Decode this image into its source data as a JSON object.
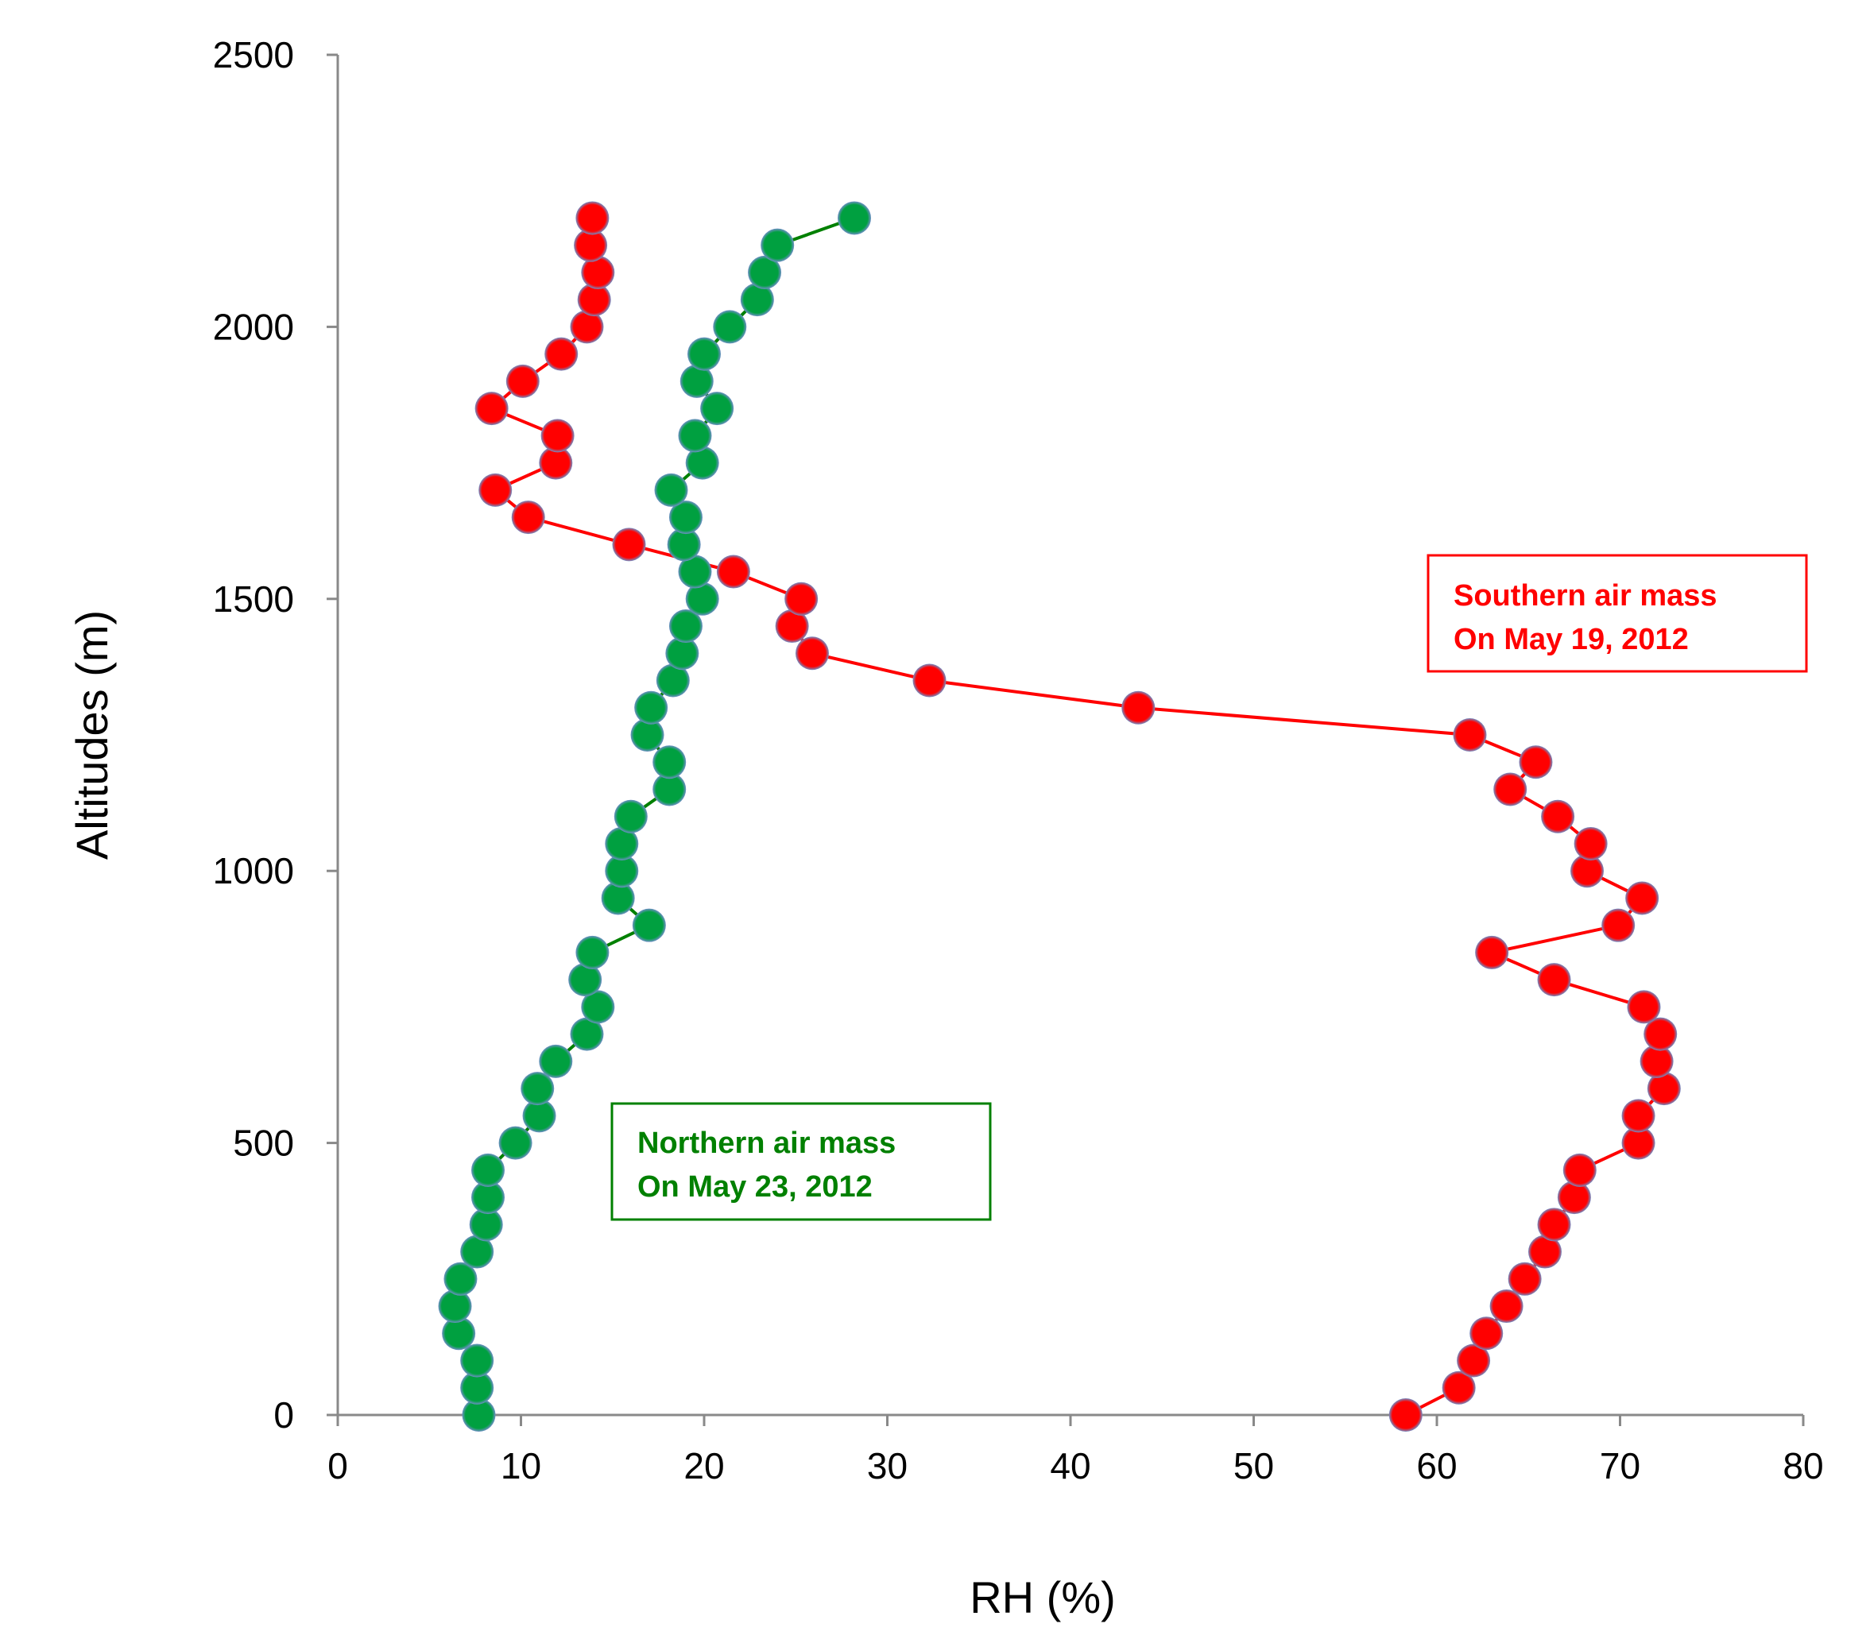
{
  "chart_data": {
    "type": "line",
    "title": "",
    "xlabel": "RH (%)",
    "ylabel": "Altitudes (m)",
    "xlim": [
      0,
      80
    ],
    "ylim": [
      0,
      2500
    ],
    "xticks": [
      "0",
      "10",
      "20",
      "30",
      "40",
      "50",
      "60",
      "70",
      "80"
    ],
    "yticks": [
      "0",
      "500",
      "1000",
      "1500",
      "2000",
      "2500"
    ],
    "grid": false,
    "series": [
      {
        "key": "southern",
        "color": "#ff0000",
        "marker": "circle",
        "label_lines": [
          "Southern air mass",
          "On May 19, 2012"
        ],
        "x": [
          58.3,
          61.2,
          62.0,
          62.7,
          63.8,
          64.8,
          65.9,
          66.4,
          67.5,
          67.8,
          71.0,
          71.0,
          72.4,
          72.0,
          72.2,
          71.3,
          66.4,
          63.0,
          69.9,
          71.2,
          68.2,
          68.4,
          66.6,
          64.0,
          65.4,
          61.8,
          43.7,
          32.3,
          25.9,
          24.8,
          25.3,
          21.6,
          15.9,
          10.4,
          8.6,
          11.9,
          12.0,
          8.4,
          10.1,
          12.2,
          13.6,
          14.0,
          14.2,
          13.8,
          13.9
        ],
        "y": [
          0,
          50,
          100,
          150,
          200,
          250,
          300,
          350,
          400,
          450,
          500,
          550,
          600,
          650,
          700,
          750,
          800,
          850,
          900,
          950,
          1000,
          1050,
          1100,
          1150,
          1200,
          1250,
          1300,
          1350,
          1400,
          1450,
          1500,
          1550,
          1600,
          1650,
          1700,
          1750,
          1800,
          1850,
          1900,
          1950,
          2000,
          2050,
          2100,
          2150,
          2200
        ]
      },
      {
        "key": "northern",
        "color": "#00a040",
        "marker": "circle",
        "label_lines": [
          "Northern air mass",
          "On May 23, 2012"
        ],
        "x": [
          7.7,
          7.6,
          7.6,
          6.6,
          6.4,
          6.7,
          7.6,
          8.1,
          8.2,
          8.2,
          9.7,
          11.0,
          10.9,
          11.9,
          13.6,
          14.2,
          13.5,
          13.9,
          17.0,
          15.3,
          15.5,
          15.5,
          16.0,
          18.1,
          18.1,
          16.9,
          17.1,
          18.3,
          18.8,
          19.0,
          19.9,
          19.5,
          18.9,
          19.0,
          18.2,
          19.9,
          19.5,
          20.7,
          19.6,
          20.0,
          21.4,
          22.9,
          23.3,
          24.0,
          28.2
        ],
        "y": [
          0,
          50,
          100,
          150,
          200,
          250,
          300,
          350,
          400,
          450,
          500,
          550,
          600,
          650,
          700,
          750,
          800,
          850,
          900,
          950,
          1000,
          1050,
          1100,
          1150,
          1200,
          1250,
          1300,
          1350,
          1400,
          1450,
          1500,
          1550,
          1600,
          1650,
          1700,
          1750,
          1800,
          1850,
          1900,
          1950,
          2000,
          2050,
          2100,
          2150,
          2200
        ]
      }
    ]
  }
}
